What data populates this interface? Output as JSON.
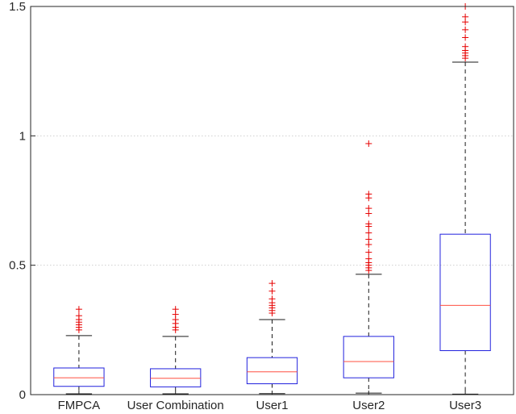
{
  "chart_data": {
    "type": "boxplot",
    "title": "",
    "xlabel": "",
    "ylabel": "",
    "categories": [
      "FMPCA",
      "User Combination",
      "User1",
      "User2",
      "User3"
    ],
    "ylim": [
      0,
      1.5
    ],
    "yticks": [
      0,
      0.5,
      1,
      1.5
    ],
    "ytick_labels": [
      "0",
      "0.5",
      "1",
      "1.5"
    ],
    "grid": "horizontal-dotted",
    "legend": "none",
    "series": [
      {
        "name": "FMPCA",
        "whisker_low": 0.003,
        "q1": 0.032,
        "median": 0.065,
        "q3": 0.103,
        "whisker_high": 0.228,
        "outliers": [
          0.25,
          0.26,
          0.27,
          0.28,
          0.29,
          0.305,
          0.33
        ]
      },
      {
        "name": "User Combination",
        "whisker_low": 0.003,
        "q1": 0.03,
        "median": 0.063,
        "q3": 0.1,
        "whisker_high": 0.225,
        "outliers": [
          0.25,
          0.26,
          0.275,
          0.29,
          0.31,
          0.33
        ]
      },
      {
        "name": "User1",
        "whisker_low": 0.004,
        "q1": 0.042,
        "median": 0.088,
        "q3": 0.143,
        "whisker_high": 0.29,
        "outliers": [
          0.315,
          0.325,
          0.335,
          0.345,
          0.355,
          0.37,
          0.4,
          0.43
        ]
      },
      {
        "name": "User2",
        "whisker_low": 0.006,
        "q1": 0.065,
        "median": 0.128,
        "q3": 0.225,
        "whisker_high": 0.465,
        "outliers": [
          0.48,
          0.49,
          0.5,
          0.51,
          0.525,
          0.55,
          0.58,
          0.6,
          0.625,
          0.65,
          0.66,
          0.7,
          0.72,
          0.76,
          0.775,
          0.97
        ]
      },
      {
        "name": "User3",
        "whisker_low": 0.002,
        "q1": 0.17,
        "median": 0.345,
        "q3": 0.62,
        "whisker_high": 1.285,
        "outliers": [
          1.3,
          1.31,
          1.32,
          1.33,
          1.345,
          1.38,
          1.41,
          1.44,
          1.46,
          1.5
        ]
      }
    ],
    "colors": {
      "box": "#2222dd",
      "median": "#ff5042",
      "whisker": "#1a1a1a",
      "outlier": "#e60000",
      "grid": "#cfcfcf",
      "axis": "#262626",
      "background": "#ffffff"
    }
  }
}
